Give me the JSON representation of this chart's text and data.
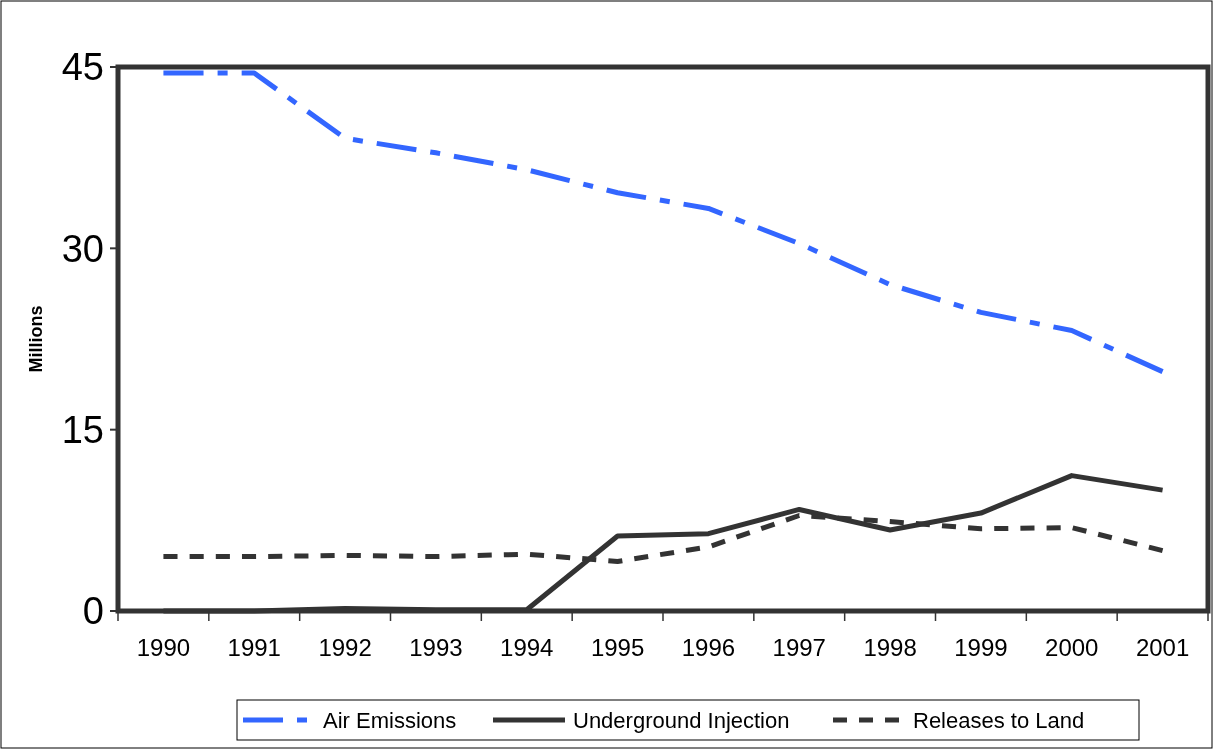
{
  "chart_data": {
    "type": "line",
    "ylabel": "Millions",
    "categories": [
      "1990",
      "1991",
      "1992",
      "1993",
      "1994",
      "1995",
      "1996",
      "1997",
      "1998",
      "1999",
      "2000",
      "2001"
    ],
    "ylim": [
      0,
      45
    ],
    "yticks": [
      0,
      15,
      30,
      45
    ],
    "grid": false,
    "legend": "bottom",
    "series": [
      {
        "name": "Air Emissions",
        "color": "#3366ff",
        "line_style": "dashdot",
        "values": [
          44.5,
          44.5,
          39.1,
          37.9,
          36.5,
          34.6,
          33.3,
          30.4,
          27.0,
          24.7,
          23.2,
          19.8
        ]
      },
      {
        "name": "Underground Injection",
        "color": "#333333",
        "line_style": "solid",
        "values": [
          0,
          0,
          0.2,
          0.1,
          0.1,
          6.2,
          6.4,
          8.4,
          6.7,
          8.1,
          11.2,
          10.0
        ]
      },
      {
        "name": "Releases to Land",
        "color": "#333333",
        "line_style": "dashed",
        "values": [
          4.5,
          4.5,
          4.6,
          4.5,
          4.7,
          4.1,
          5.3,
          7.9,
          7.4,
          6.8,
          6.9,
          5.0
        ]
      }
    ]
  }
}
